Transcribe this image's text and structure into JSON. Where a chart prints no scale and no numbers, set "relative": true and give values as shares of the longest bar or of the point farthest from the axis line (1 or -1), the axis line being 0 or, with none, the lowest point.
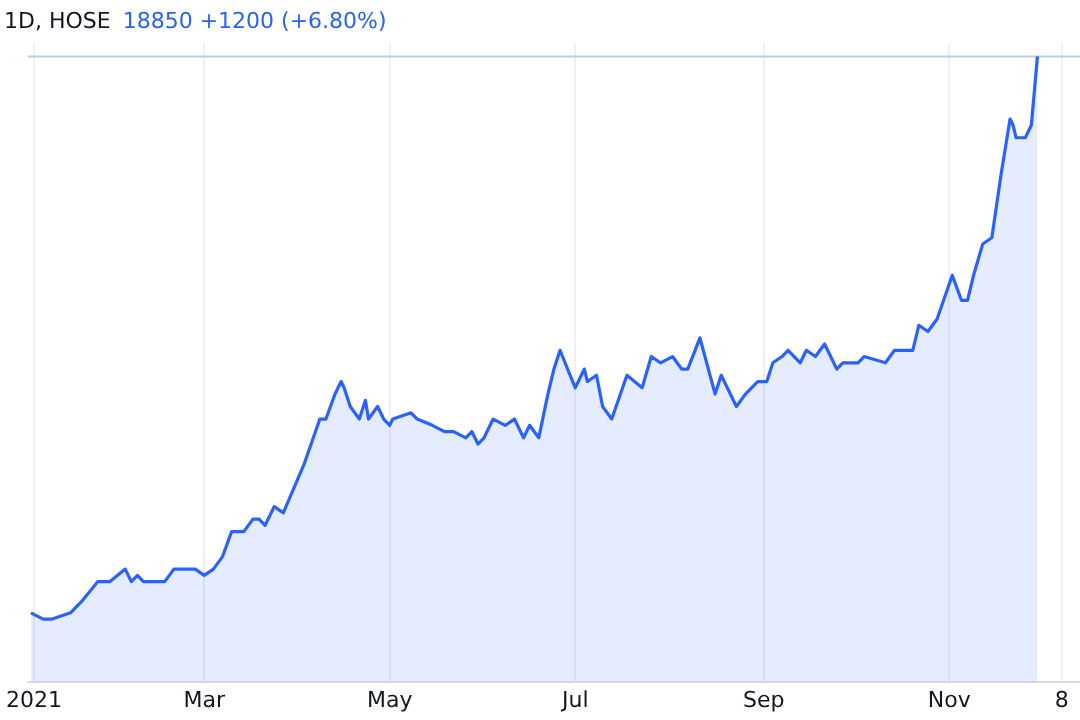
{
  "chart_data": {
    "type": "area",
    "title": "1D, HOSE",
    "subtitle": "18850 +1200 (+6.80%)",
    "relative": true,
    "grid": "x",
    "legend": false,
    "marker": "none",
    "line_style": "solid",
    "xlim": [
      "2021-01-02",
      "2021-12-14"
    ],
    "xticks": [
      {
        "value": "2021-01-04",
        "label": "2021"
      },
      {
        "value": "2021-03-01",
        "label": "Mar"
      },
      {
        "value": "2021-05-01",
        "label": "May"
      },
      {
        "value": "2021-07-01",
        "label": "Jul"
      },
      {
        "value": "2021-09-01",
        "label": "Sep"
      },
      {
        "value": "2021-11-01",
        "label": "Nov"
      },
      {
        "value": "2021-12-08",
        "label": "8"
      }
    ],
    "ref_lines": [
      {
        "axis": "y",
        "value": 1,
        "color": "#b7cbf7"
      }
    ],
    "series": [
      {
        "color": "#2962ff",
        "x": [
          "2021-01-03",
          "2021-01-07",
          "2021-01-10",
          "2021-01-16",
          "2021-01-20",
          "2021-01-25",
          "2021-01-29",
          "2021-02-03",
          "2021-02-05",
          "2021-02-07",
          "2021-02-09",
          "2021-02-11",
          "2021-02-16",
          "2021-02-19",
          "2021-02-26",
          "2021-03-01",
          "2021-03-04",
          "2021-03-07",
          "2021-03-10",
          "2021-03-14",
          "2021-03-17",
          "2021-03-19",
          "2021-03-21",
          "2021-03-24",
          "2021-03-27",
          "2021-04-03",
          "2021-04-08",
          "2021-04-10",
          "2021-04-13",
          "2021-04-15",
          "2021-04-16",
          "2021-04-18",
          "2021-04-21",
          "2021-04-23",
          "2021-04-24",
          "2021-04-27",
          "2021-04-29",
          "2021-05-01",
          "2021-05-02",
          "2021-05-08",
          "2021-05-10",
          "2021-05-15",
          "2021-05-19",
          "2021-05-22",
          "2021-05-26",
          "2021-05-28",
          "2021-05-30",
          "2021-06-01",
          "2021-06-04",
          "2021-06-08",
          "2021-06-11",
          "2021-06-14",
          "2021-06-16",
          "2021-06-19",
          "2021-06-22",
          "2021-06-24",
          "2021-06-26",
          "2021-07-01",
          "2021-07-04",
          "2021-07-05",
          "2021-07-08",
          "2021-07-10",
          "2021-07-13",
          "2021-07-18",
          "2021-07-23",
          "2021-07-26",
          "2021-07-29",
          "2021-08-02",
          "2021-08-05",
          "2021-08-07",
          "2021-08-11",
          "2021-08-16",
          "2021-08-18",
          "2021-08-20",
          "2021-08-23",
          "2021-08-26",
          "2021-08-30",
          "2021-09-02",
          "2021-09-04",
          "2021-09-07",
          "2021-09-09",
          "2021-09-13",
          "2021-09-15",
          "2021-09-18",
          "2021-09-21",
          "2021-09-25",
          "2021-09-27",
          "2021-10-02",
          "2021-10-04",
          "2021-10-11",
          "2021-10-14",
          "2021-10-20",
          "2021-10-22",
          "2021-10-25",
          "2021-10-28",
          "2021-11-02",
          "2021-11-05",
          "2021-11-07",
          "2021-11-09",
          "2021-11-12",
          "2021-11-15",
          "2021-11-18",
          "2021-11-21",
          "2021-11-22",
          "2021-11-23",
          "2021-11-26",
          "2021-11-28",
          "2021-11-30"
        ],
        "values": [
          0.11,
          0.1,
          0.1,
          0.11,
          0.13,
          0.16,
          0.16,
          0.18,
          0.16,
          0.17,
          0.16,
          0.16,
          0.16,
          0.18,
          0.18,
          0.17,
          0.18,
          0.2,
          0.24,
          0.24,
          0.26,
          0.26,
          0.25,
          0.28,
          0.27,
          0.35,
          0.42,
          0.42,
          0.46,
          0.48,
          0.47,
          0.44,
          0.42,
          0.45,
          0.42,
          0.44,
          0.42,
          0.41,
          0.42,
          0.43,
          0.42,
          0.41,
          0.4,
          0.4,
          0.39,
          0.4,
          0.38,
          0.39,
          0.42,
          0.41,
          0.42,
          0.39,
          0.41,
          0.39,
          0.46,
          0.5,
          0.53,
          0.47,
          0.5,
          0.48,
          0.49,
          0.44,
          0.42,
          0.49,
          0.47,
          0.52,
          0.51,
          0.52,
          0.5,
          0.5,
          0.55,
          0.46,
          0.49,
          0.47,
          0.44,
          0.46,
          0.48,
          0.48,
          0.51,
          0.52,
          0.53,
          0.51,
          0.53,
          0.52,
          0.54,
          0.5,
          0.51,
          0.51,
          0.52,
          0.51,
          0.53,
          0.53,
          0.57,
          0.56,
          0.58,
          0.65,
          0.61,
          0.61,
          0.65,
          0.7,
          0.71,
          0.81,
          0.9,
          0.89,
          0.87,
          0.87,
          0.89,
          1
        ]
      }
    ]
  }
}
